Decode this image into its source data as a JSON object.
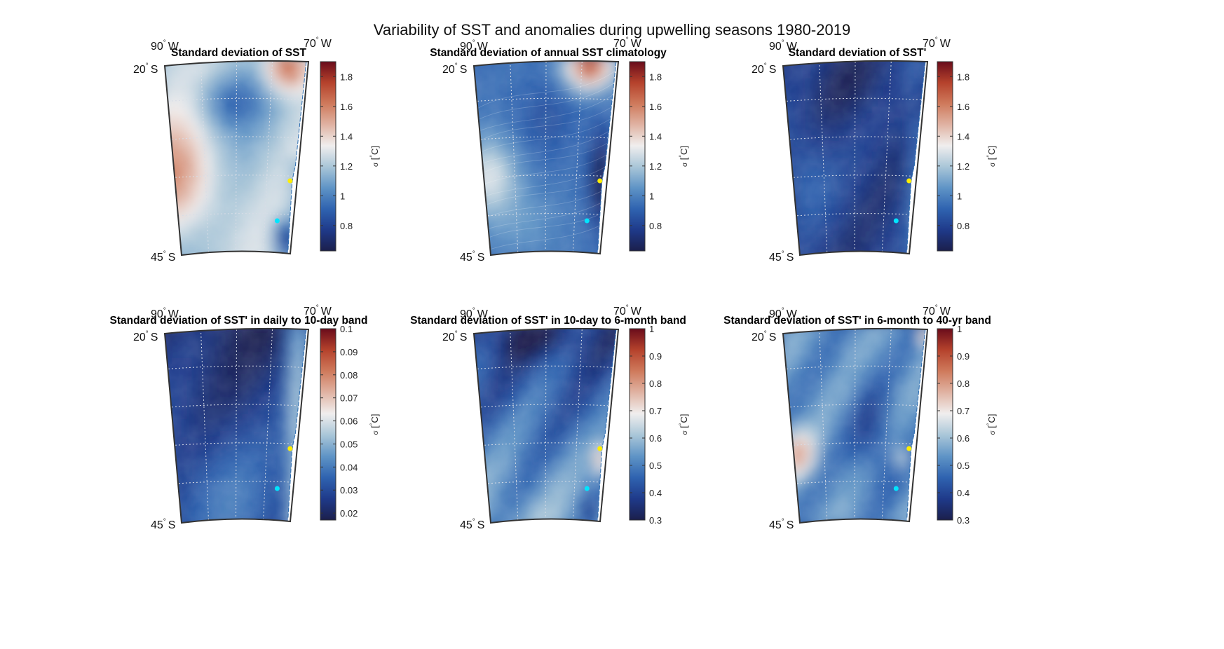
{
  "figure": {
    "title": "Variability of SST and anomalies during upwelling seasons 1980-2019"
  },
  "colors": {
    "land": "#ffffff",
    "frame": "#333333",
    "grid": "#d8dde6",
    "station_north": "#ffee00",
    "station_south": "#00e5ff",
    "colormap": [
      "#1b1f4c",
      "#1f3a8a",
      "#2f63b0",
      "#5f94c6",
      "#a9c6d8",
      "#f0eeee",
      "#e0b3a3",
      "#cf7a5c",
      "#b5422c",
      "#6a0c1b"
    ]
  },
  "map_labels": {
    "lon_left": "90",
    "lon_right": "70",
    "lon_hemi": "W",
    "lat_top": "20",
    "lat_bottom": "45",
    "lat_hemi": "S",
    "degree": "°"
  },
  "colorbar_label": {
    "sigma": "σ",
    "unit_open": " [",
    "unit_deg": "°",
    "unit_close": "C]"
  },
  "chart_data": [
    {
      "type": "heatmap",
      "title": "Standard deviation of SST",
      "clim": [
        0.63,
        1.9
      ],
      "ticks": [
        "0.8",
        "1",
        "1.2",
        "1.4",
        "1.6",
        "1.8"
      ],
      "tick_values": [
        0.8,
        1.0,
        1.2,
        1.4,
        1.6,
        1.8
      ],
      "field": "total",
      "contours": false
    },
    {
      "type": "heatmap",
      "title": "Standard deviation of annual SST climatology",
      "clim": [
        0.63,
        1.9
      ],
      "ticks": [
        "0.8",
        "1",
        "1.2",
        "1.4",
        "1.6",
        "1.8"
      ],
      "tick_values": [
        0.8,
        1.0,
        1.2,
        1.4,
        1.6,
        1.8
      ],
      "field": "climatology",
      "contours": true
    },
    {
      "type": "heatmap",
      "title": "Standard deviation of SST'",
      "clim": [
        0.63,
        1.9
      ],
      "ticks": [
        "0.8",
        "1",
        "1.2",
        "1.4",
        "1.6",
        "1.8"
      ],
      "tick_values": [
        0.8,
        1.0,
        1.2,
        1.4,
        1.6,
        1.8
      ],
      "field": "anomaly",
      "contours": false
    },
    {
      "type": "heatmap",
      "title": "Standard deviation of SST' in daily to 10-day band",
      "clim": [
        0.017,
        0.1
      ],
      "ticks": [
        "0.02",
        "0.03",
        "0.04",
        "0.05",
        "0.06",
        "0.07",
        "0.08",
        "0.09",
        "0.1"
      ],
      "tick_values": [
        0.02,
        0.03,
        0.04,
        0.05,
        0.06,
        0.07,
        0.08,
        0.09,
        0.1
      ],
      "field": "daily",
      "contours": false
    },
    {
      "type": "heatmap",
      "title": "Standard deviation of SST' in 10-day to 6-month band",
      "clim": [
        0.3,
        1.0
      ],
      "ticks": [
        "0.3",
        "0.4",
        "0.5",
        "0.6",
        "0.7",
        "0.8",
        "0.9",
        "1"
      ],
      "tick_values": [
        0.3,
        0.4,
        0.5,
        0.6,
        0.7,
        0.8,
        0.9,
        1.0
      ],
      "field": "intraseasonal",
      "contours": false
    },
    {
      "type": "heatmap",
      "title": "Standard deviation of SST' in 6-month to 40-yr band",
      "clim": [
        0.3,
        1.0
      ],
      "ticks": [
        "0.3",
        "0.4",
        "0.5",
        "0.6",
        "0.7",
        "0.8",
        "0.9",
        "1"
      ],
      "tick_values": [
        0.3,
        0.4,
        0.5,
        0.6,
        0.7,
        0.8,
        0.9,
        1.0
      ],
      "field": "interannual",
      "contours": false
    }
  ]
}
